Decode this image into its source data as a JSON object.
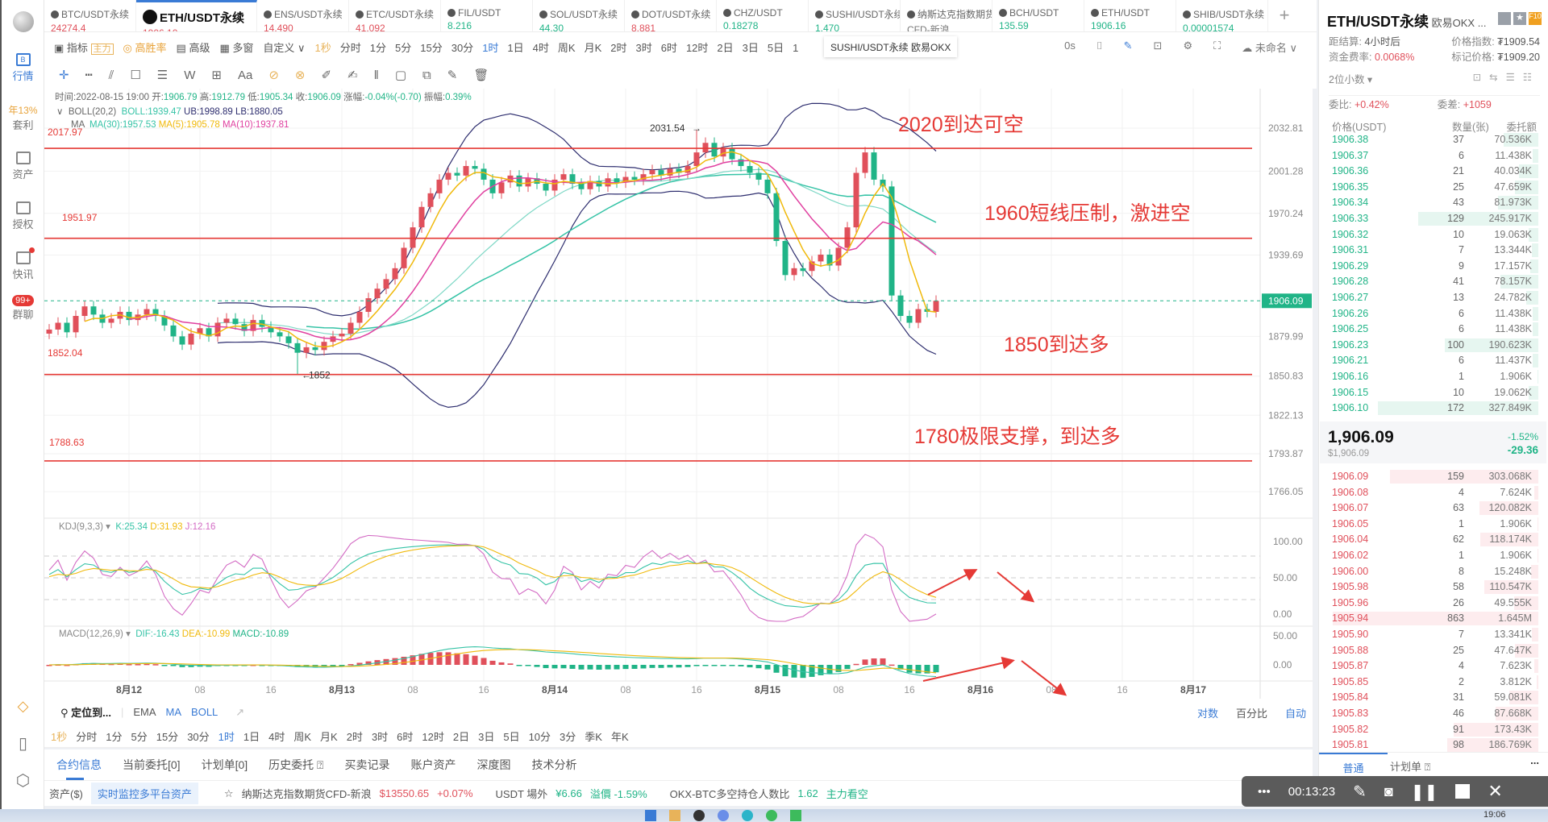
{
  "sidebar": {
    "items": [
      {
        "label": "行情",
        "icon": "B"
      },
      {
        "label": "套利",
        "badge": "年13%"
      },
      {
        "label": "资产"
      },
      {
        "label": "授权"
      },
      {
        "label": "快讯"
      },
      {
        "label": "群聊",
        "badge": "99+"
      }
    ]
  },
  "tabs": [
    {
      "symbol": "BTC/USDT永续",
      "price": "24274.4",
      "color": "red"
    },
    {
      "symbol": "ETH/USDT永续",
      "price": "1906.10",
      "color": "red",
      "active": true
    },
    {
      "symbol": "ENS/USDT永续",
      "price": "14.490",
      "color": "red"
    },
    {
      "symbol": "ETC/USDT永续",
      "price": "41.092",
      "color": "red"
    },
    {
      "symbol": "FIL/USDT",
      "price": "8.216",
      "color": "green"
    },
    {
      "symbol": "SOL/USDT永续",
      "price": "44.30",
      "color": "green"
    },
    {
      "symbol": "DOT/USDT永续",
      "price": "8.881",
      "color": "red"
    },
    {
      "symbol": "CHZ/USDT",
      "price": "0.18278",
      "color": "green"
    },
    {
      "symbol": "SUSHI/USDT永续",
      "price": "1.470",
      "color": "green"
    },
    {
      "symbol": "纳斯达克指数期货",
      "price": "CFD-新浪",
      "color": "grey"
    },
    {
      "symbol": "BCH/USDT",
      "price": "135.59",
      "color": "green"
    },
    {
      "symbol": "ETH/USDT",
      "price": "1906.16",
      "color": "green"
    },
    {
      "symbol": "SHIB/USDT永续",
      "price": "0.00001574",
      "color": "green"
    }
  ],
  "toolbar": {
    "indicator": "指标",
    "main": "主力",
    "winrate": "高胜率",
    "advanced": "高级",
    "multiwin": "多窗",
    "custom": "自定义",
    "periods": [
      "1秒",
      "分时",
      "1分",
      "5分",
      "15分",
      "30分",
      "1时",
      "1日",
      "4时",
      "周K",
      "月K",
      "2时",
      "3时",
      "6时",
      "12时",
      "2日",
      "3日",
      "5日",
      "1"
    ],
    "active_period": "1时",
    "countdown": "0s",
    "layout_name": "未命名"
  },
  "tooltip": "SUSHI/USDT永续 欧易OKX",
  "info": {
    "time": "时间:2022-08-15 19:00",
    "open_l": "开:",
    "open": "1906.79",
    "high_l": "高:",
    "high": "1912.79",
    "low_l": "低:",
    "low": "1905.34",
    "close_l": "收:",
    "close": "1906.09",
    "chg_l": "涨幅:",
    "chg": "-0.04%(-0.70)",
    "amp_l": "振幅:",
    "amp": "0.39%"
  },
  "boll": {
    "name": "BOLL(20,2)",
    "boll": "BOLL:1939.47",
    "ub": "UB:1998.89",
    "lb": "LB:1880.05"
  },
  "ma": {
    "name": "MA",
    "ma30": "MA(30):1957.53",
    "ma5": "MA(5):1905.78",
    "ma10": "MA(10):1937.81"
  },
  "kdj": {
    "name": "KDJ(9,3,3)",
    "k": "K:25.34",
    "d": "D:31.93",
    "j": "J:12.16"
  },
  "macd": {
    "name": "MACD(12,26,9)",
    "dif": "DIF:-16.43",
    "dea": "DEA:-10.99",
    "macd": "MACD:-10.89"
  },
  "chart_data": {
    "type": "candlestick",
    "interval": "1h",
    "closes": [
      1885,
      1890,
      1883,
      1895,
      1902,
      1896,
      1890,
      1893,
      1898,
      1892,
      1896,
      1900,
      1895,
      1888,
      1880,
      1874,
      1882,
      1886,
      1880,
      1890,
      1893,
      1889,
      1884,
      1892,
      1887,
      1883,
      1880,
      1875,
      1868,
      1872,
      1870,
      1876,
      1880,
      1882,
      1890,
      1898,
      1908,
      1915,
      1922,
      1930,
      1945,
      1960,
      1975,
      1985,
      1995,
      2000,
      1998,
      2005,
      2003,
      1995,
      1985,
      1993,
      1998,
      1990,
      1996,
      1992,
      1987,
      1995,
      1999,
      1992,
      1988,
      1994,
      1990,
      1996,
      1993,
      1997,
      1995,
      1999,
      2002,
      1998,
      2003,
      2000,
      2005,
      2015,
      2022,
      2012,
      2018,
      2010,
      2005,
      2000,
      1995,
      1985,
      1950,
      1925,
      1930,
      1928,
      1935,
      1940,
      1932,
      1945,
      1960,
      2000,
      2015,
      1995,
      1990,
      1910,
      1895,
      1890,
      1900,
      1898,
      1906.09
    ],
    "high_mark": {
      "index": 73,
      "price": 2031.54,
      "label": "2031.54"
    },
    "low_mark": {
      "index": 28,
      "price": 1852,
      "label": "1852"
    },
    "price_ticks": [
      "2032.81",
      "2001.28",
      "1970.24",
      "1939.69",
      "1879.99",
      "1850.83",
      "1822.13",
      "1793.87",
      "1766.05"
    ],
    "last_price": "1906.09",
    "kdj_ticks": [
      "100.00",
      "50.00",
      "0.00"
    ],
    "macd_ticks": [
      "50.00",
      "0.00"
    ],
    "x_ticks": [
      {
        "label": "8月12",
        "index": 9,
        "bold": true
      },
      {
        "label": "08",
        "index": 17
      },
      {
        "label": "16",
        "index": 25
      },
      {
        "label": "8月13",
        "index": 33,
        "bold": true
      },
      {
        "label": "08",
        "index": 41
      },
      {
        "label": "16",
        "index": 49
      },
      {
        "label": "8月14",
        "index": 57,
        "bold": true
      },
      {
        "label": "08",
        "index": 65
      },
      {
        "label": "16",
        "index": 73
      },
      {
        "label": "8月15",
        "index": 81,
        "bold": true
      },
      {
        "label": "08",
        "index": 89
      },
      {
        "label": "16",
        "index": 97
      },
      {
        "label": "8月16",
        "index": 105,
        "bold": true
      },
      {
        "label": "08",
        "index": 113
      },
      {
        "label": "16",
        "index": 121
      },
      {
        "label": "8月17",
        "index": 129,
        "bold": true
      }
    ],
    "levels": [
      {
        "price": 2017.97,
        "label": "2017.97",
        "note": "2020到达可空"
      },
      {
        "price": 1951.97,
        "label": "1951.97",
        "note": "1960短线压制，激进空"
      },
      {
        "price": 1852.04,
        "label": "1852.04",
        "note": "1850到达多"
      },
      {
        "price": 1788.63,
        "label": "1788.63",
        "note": "1780极限支撑，到达多"
      }
    ],
    "colors": {
      "up": "#e0505b",
      "down": "#20b487",
      "ma5": "#f0b90b",
      "ma10": "#e040a0",
      "ma30": "#35c3a6",
      "boll": "#2d2d6e",
      "annotation": "#e53935"
    }
  },
  "bottom": {
    "locate": "定位到...",
    "ema": "EMA",
    "ma": "MA",
    "boll": "BOLL",
    "log": "对数",
    "percent": "百分比",
    "auto": "自动",
    "periods": [
      "1秒",
      "分时",
      "1分",
      "5分",
      "15分",
      "30分",
      "1时",
      "1日",
      "4时",
      "周K",
      "月K",
      "2时",
      "3时",
      "6时",
      "12时",
      "2日",
      "3日",
      "5日",
      "10分",
      "3分",
      "季K",
      "年K"
    ],
    "tabs": [
      "合约信息",
      "当前委托[0]",
      "计划单[0]",
      "历史委托 ⍰",
      "买卖记录",
      "账户资产",
      "深度图",
      "技术分析"
    ]
  },
  "ticker": {
    "assets": "资产($)",
    "monitor": "实时监控多平台资产",
    "nasdaq": "纳斯达克指数期货CFD-新浪",
    "nasdaq_price": "$13550.65",
    "nasdaq_chg": "+0.07%",
    "usdt": "USDT 場外",
    "usdt_price": "¥6.66",
    "premium": "溢價 -1.59%",
    "ratio_label": "OKX-BTC多空持仓人数比",
    "ratio": "1.62",
    "ratio_note": "主力看空"
  },
  "panel": {
    "title": "ETH/USDT永续",
    "exchange": "欧易OKX ...",
    "settle_l": "距结算:",
    "settle": "4小时后",
    "index_l": "价格指数:",
    "index": "₮1909.54",
    "funding_l": "资金费率:",
    "funding": "0.0068%",
    "mark_l": "标记价格:",
    "mark": "₮1909.20",
    "decimals": "2位小数 ▾",
    "ratio_l": "委比:",
    "ratio": "+0.42%",
    "diff_l": "委差:",
    "diff": "+1059",
    "headers": [
      "价格(USDT)",
      "数量(张)",
      "委托额"
    ],
    "asks": [
      [
        "1906.38",
        "37",
        "70.536K"
      ],
      [
        "1906.37",
        "6",
        "11.438K"
      ],
      [
        "1906.36",
        "21",
        "40.034K"
      ],
      [
        "1906.35",
        "25",
        "47.659K"
      ],
      [
        "1906.34",
        "43",
        "81.973K"
      ],
      [
        "1906.33",
        "129",
        "245.917K"
      ],
      [
        "1906.32",
        "10",
        "19.063K"
      ],
      [
        "1906.31",
        "7",
        "13.344K"
      ],
      [
        "1906.29",
        "9",
        "17.157K"
      ],
      [
        "1906.28",
        "41",
        "78.157K"
      ],
      [
        "1906.27",
        "13",
        "24.782K"
      ],
      [
        "1906.26",
        "6",
        "11.438K"
      ],
      [
        "1906.25",
        "6",
        "11.438K"
      ],
      [
        "1906.23",
        "100",
        "190.623K"
      ],
      [
        "1906.21",
        "6",
        "11.437K"
      ],
      [
        "1906.16",
        "1",
        "1.906K"
      ],
      [
        "1906.15",
        "10",
        "19.062K"
      ],
      [
        "1906.10",
        "172",
        "327.849K"
      ]
    ],
    "last": "1,906.09",
    "last_usd": "$1,906.09",
    "chg_pct": "-1.52%",
    "chg": "-29.36",
    "bids": [
      [
        "1906.09",
        "159",
        "303.068K"
      ],
      [
        "1906.08",
        "4",
        "7.624K"
      ],
      [
        "1906.07",
        "63",
        "120.082K"
      ],
      [
        "1906.05",
        "1",
        "1.906K"
      ],
      [
        "1906.04",
        "62",
        "118.174K"
      ],
      [
        "1906.02",
        "1",
        "1.906K"
      ],
      [
        "1906.00",
        "8",
        "15.248K"
      ],
      [
        "1905.98",
        "58",
        "110.547K"
      ],
      [
        "1905.96",
        "26",
        "49.555K"
      ],
      [
        "1905.94",
        "863",
        "1.645M"
      ],
      [
        "1905.90",
        "7",
        "13.341K"
      ],
      [
        "1905.88",
        "25",
        "47.647K"
      ],
      [
        "1905.87",
        "4",
        "7.623K"
      ],
      [
        "1905.85",
        "2",
        "3.812K"
      ],
      [
        "1905.84",
        "31",
        "59.081K"
      ],
      [
        "1905.83",
        "46",
        "87.668K"
      ],
      [
        "1905.82",
        "91",
        "173.43K"
      ],
      [
        "1905.81",
        "98",
        "186.769K"
      ]
    ],
    "tab_normal": "普通",
    "tab_plan": "计划单 ⍰",
    "more": "..."
  },
  "recorder": {
    "time": "00:13:23"
  },
  "taskbar": {
    "clock": "19:06"
  }
}
